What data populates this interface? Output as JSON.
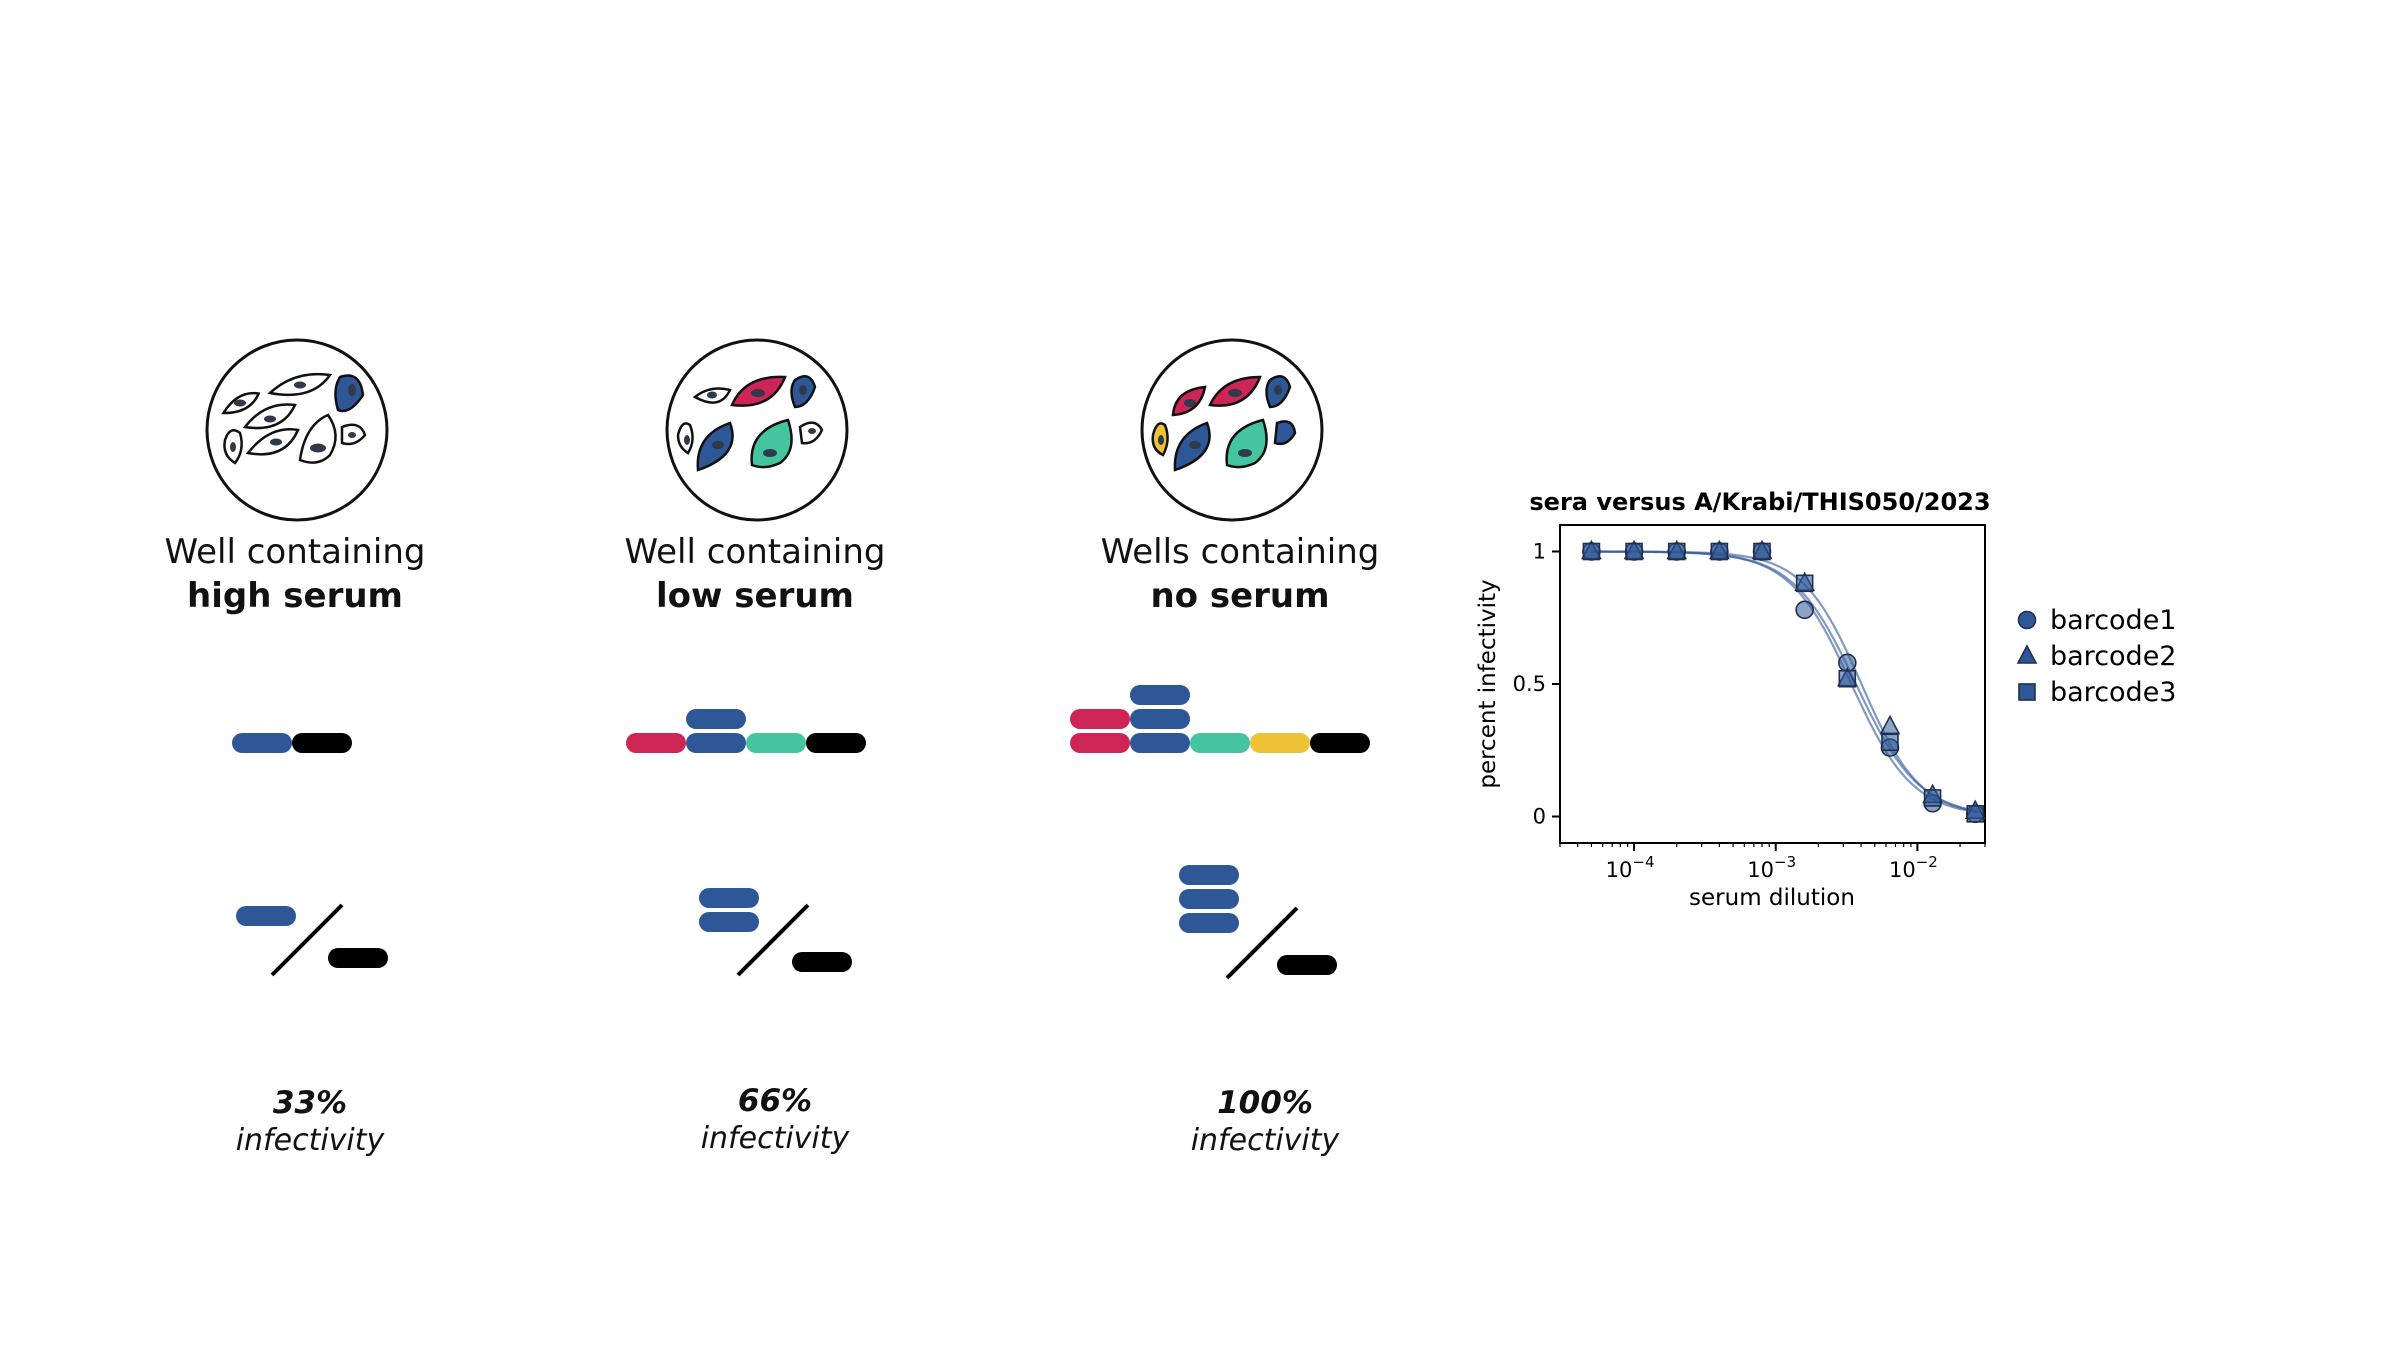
{
  "wells": [
    {
      "line1": "Well containing",
      "line2": "high serum",
      "percent": "33%",
      "label": "infectivity"
    },
    {
      "line1": "Well containing",
      "line2": "low serum",
      "percent": "66%",
      "label": "infectivity"
    },
    {
      "line1": "Wells containing",
      "line2": "no serum",
      "percent": "100%",
      "label": "infectivity"
    }
  ],
  "colors": {
    "blue": "#2e5797",
    "red": "#cf2556",
    "green": "#45c4a0",
    "yellow": "#eec235",
    "black": "#000000",
    "nucleus": "#2f3a4a"
  },
  "chart_data": {
    "type": "scatter",
    "title": "sera versus A/Krabi/THIS050/2023",
    "xlabel": "serum dilution",
    "ylabel": "percent infectivity",
    "xscale": "log",
    "xlim": [
      3e-05,
      0.03
    ],
    "ylim": [
      -0.1,
      1.1
    ],
    "yticks": [
      {
        "value": 0,
        "label": "0"
      },
      {
        "value": 0.5,
        "label": "0.5"
      },
      {
        "value": 1,
        "label": "1"
      }
    ],
    "xticks": [
      {
        "value": 0.0001,
        "base": "10",
        "exp": "−4"
      },
      {
        "value": 0.001,
        "base": "10",
        "exp": "−3"
      },
      {
        "value": 0.01,
        "base": "10",
        "exp": "−2"
      }
    ],
    "series": [
      {
        "name": "barcode1",
        "marker": "circle",
        "x": [
          5e-05,
          0.0001,
          0.0002,
          0.0004,
          0.0008,
          0.0016,
          0.0032,
          0.0064,
          0.0128,
          0.0256
        ],
        "y": [
          1.0,
          1.0,
          1.0,
          1.0,
          1.0,
          0.78,
          0.58,
          0.26,
          0.05,
          0.01
        ]
      },
      {
        "name": "barcode2",
        "marker": "triangle",
        "x": [
          5e-05,
          0.0001,
          0.0002,
          0.0004,
          0.0008,
          0.0016,
          0.0032,
          0.0064,
          0.0128,
          0.0256
        ],
        "y": [
          1.0,
          1.0,
          1.0,
          1.0,
          1.0,
          0.88,
          0.52,
          0.34,
          0.08,
          0.02
        ]
      },
      {
        "name": "barcode3",
        "marker": "square",
        "x": [
          5e-05,
          0.0001,
          0.0002,
          0.0004,
          0.0008,
          0.0016,
          0.0032,
          0.0064,
          0.0128,
          0.0256
        ],
        "y": [
          1.0,
          1.0,
          1.0,
          1.0,
          1.0,
          0.88,
          0.52,
          0.28,
          0.07,
          0.01
        ]
      }
    ],
    "fit": {
      "ic50": 0.0038,
      "hill": 2.0
    },
    "legend": "right"
  }
}
